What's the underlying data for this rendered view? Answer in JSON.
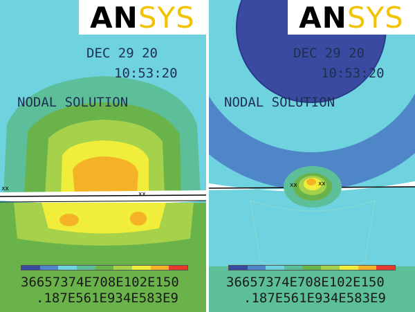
{
  "logo": {
    "an": "AN",
    "sys": "SYS"
  },
  "panels": {
    "left": {
      "date": "DEC 29 20",
      "time": "10:53:20",
      "title": "NODAL SOLUTION"
    },
    "right": {
      "date": "DEC 29 20",
      "time": "10:53:20",
      "title": "NODAL SOLUTION"
    }
  },
  "legend": {
    "colors": [
      "#3a4aa0",
      "#4f86c8",
      "#6fd3df",
      "#5cbf9a",
      "#6ab34a",
      "#a6d14a",
      "#f0ee3a",
      "#f4b326",
      "#e83a2c"
    ],
    "row1": "36657374E708E102E150",
    "row2": ".187E561E934E583E9"
  },
  "colors": {
    "field_cyan": "#6fd3df",
    "field_green": "#6ab34a",
    "field_lightgreen": "#a6d14a",
    "field_yellow": "#f0ee3a",
    "field_orange": "#f4b326",
    "field_blue": "#3a4aa0"
  }
}
